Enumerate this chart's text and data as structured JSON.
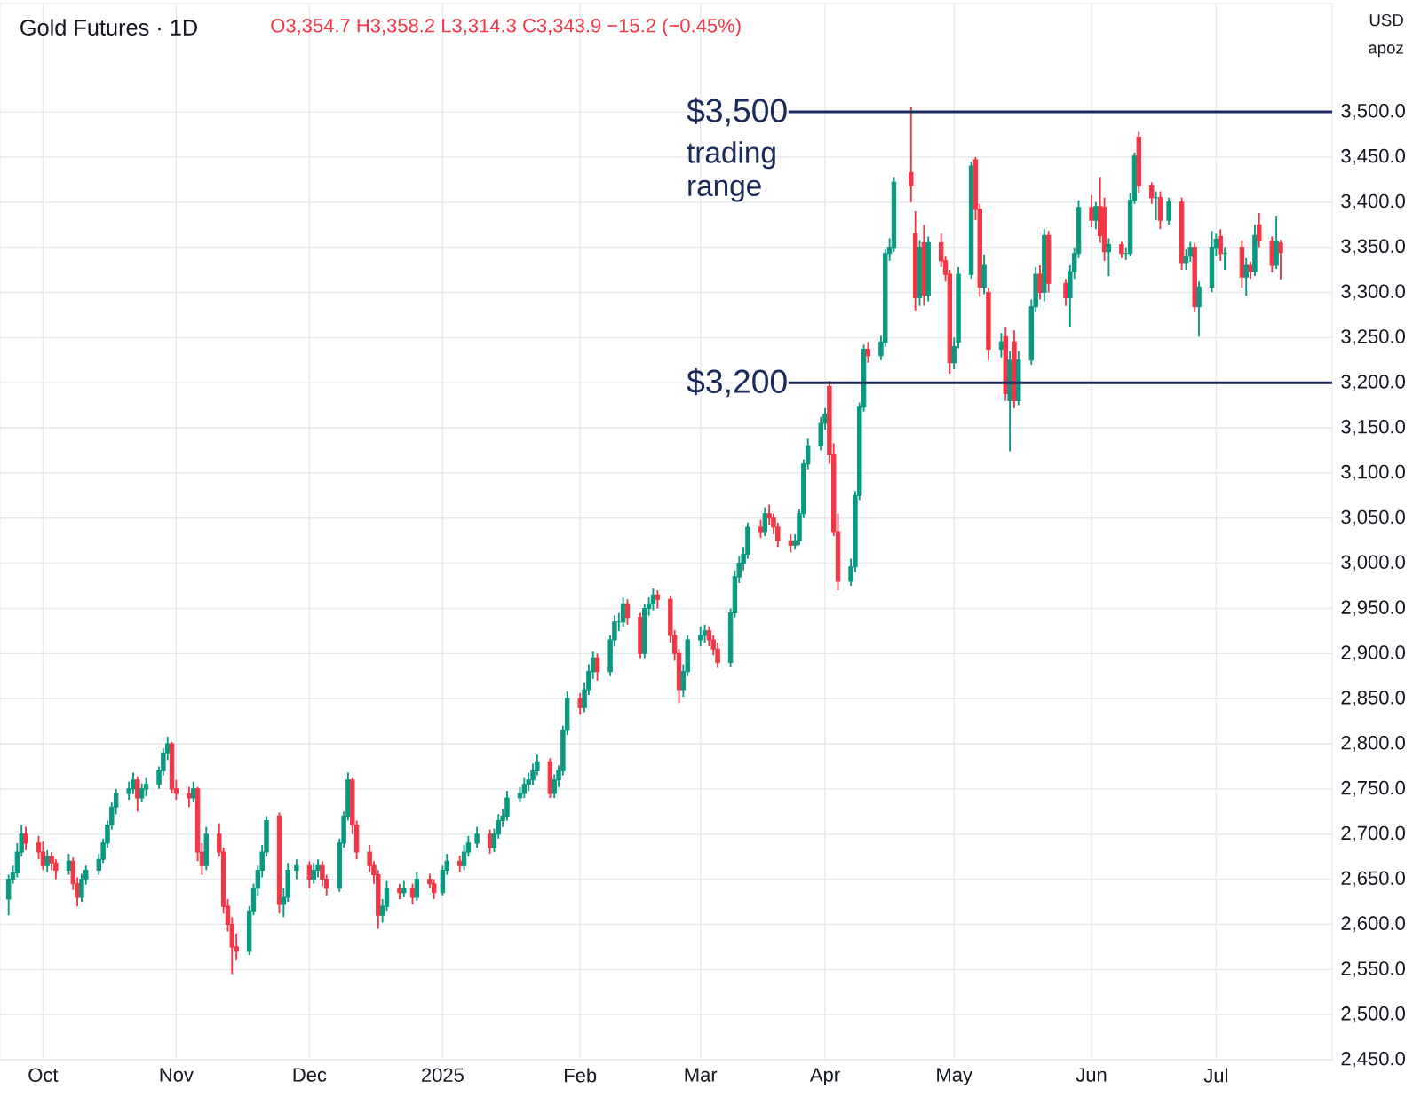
{
  "chart_data": {
    "type": "candlestick",
    "title": "Gold Futures · 1D",
    "subtitle": "O3,354.7 H3,358.2 L3,314.3 C3,343.9 −15.2 (−0.45%)",
    "annotations": [
      "trading range",
      "USD",
      "apoz"
    ],
    "colors": [
      "#089981",
      "#089981",
      "#089981",
      "#089981",
      "#f23645",
      "#f23645",
      "#f23645",
      "#089981",
      "#f23645",
      "#f23645",
      "#089981",
      "#f23645",
      "#f23645",
      "#089981",
      "#089981",
      "#089981",
      "#089981",
      "#089981",
      "#089981",
      "#089981",
      "#089981",
      "#089981",
      "#f23645",
      "#089981",
      "#089981",
      "#089981",
      "#089981",
      "#089981",
      "#f23645",
      "#f23645",
      "#f23645",
      "#089981",
      "#f23645",
      "#f23645",
      "#089981",
      "#f23645",
      "#f23645",
      "#f23645",
      "#f23645",
      "#f23645",
      "#089981",
      "#089981",
      "#089981",
      "#089981",
      "#089981",
      "#f23645",
      "#089981",
      "#089981",
      "#089981",
      "#f23645",
      "#089981",
      "#089981",
      "#f23645",
      "#f23645",
      "#089981",
      "#089981",
      "#089981",
      "#f23645",
      "#f23645",
      "#f23645",
      "#f23645",
      "#f23645",
      "#089981",
      "#089981",
      "#f23645",
      "#089981",
      "#f23645",
      "#089981",
      "#f23645",
      "#f23645",
      "#089981",
      "#089981",
      "#f23645",
      "#089981",
      "#089981",
      "#089981",
      "#f23645",
      "#089981",
      "#089981",
      "#089981",
      "#089981",
      "#089981",
      "#089981",
      "#089981",
      "#089981",
      "#089981",
      "#f23645",
      "#089981",
      "#089981",
      "#089981",
      "#089981",
      "#f23645",
      "#089981",
      "#089981",
      "#089981",
      "#f23645",
      "#089981",
      "#089981",
      "#089981",
      "#089981",
      "#f23645",
      "#f23645",
      "#089981",
      "#089981",
      "#089981",
      "#f23645",
      "#f23645",
      "#f23645",
      "#f23645",
      "#089981",
      "#089981",
      "#089981",
      "#089981",
      "#f23645",
      "#f23645",
      "#f23645",
      "#089981",
      "#089981",
      "#089981",
      "#089981",
      "#089981",
      "#f23645",
      "#089981",
      "#f23645",
      "#f23645",
      "#f23645",
      "#f23645",
      "#089981",
      "#089981",
      "#089981",
      "#089981",
      "#089981",
      "#089981",
      "#f23645",
      "#f23645",
      "#f23645",
      "#089981",
      "#089981",
      "#089981",
      "#089981",
      "#f23645",
      "#089981",
      "#089981",
      "#089981",
      "#089981",
      "#f23645",
      "#f23645",
      "#089981",
      "#f23645",
      "#089981",
      "#f23645",
      "#f23645",
      "#f23645",
      "#089981",
      "#089981",
      "#089981",
      "#f23645",
      "#f23645",
      "#089981",
      "#f23645",
      "#089981",
      "#f23645",
      "#089981",
      "#f23645",
      "#089981",
      "#089981",
      "#089981",
      "#f23645",
      "#089981",
      "#f23645",
      "#f23645",
      "#089981",
      "#089981",
      "#089981",
      "#f23645",
      "#089981",
      "#f23645",
      "#f23645",
      "#089981",
      "#f23645",
      "#089981",
      "#089981",
      "#089981",
      "#f23645",
      "#f23645",
      "#089981",
      "#f23645",
      "#089981",
      "#f23645",
      "#089981",
      "#089981",
      "#f23645",
      "#089981",
      "#089981",
      "#089981",
      "#f23645",
      "#089981",
      "#f23645",
      "#089981",
      "#f23645",
      "#089981",
      "#f23645",
      "#f23645",
      "#089981",
      "#f23645"
    ],
    "grid": true,
    "x": [
      "2024-09-23",
      "2024-09-24",
      "2024-09-25",
      "2024-09-26",
      "2024-09-27",
      "2024-09-30",
      "2024-10-01",
      "2024-10-02",
      "2024-10-03",
      "2024-10-04",
      "2024-10-07",
      "2024-10-08",
      "2024-10-09",
      "2024-10-10",
      "2024-10-11",
      "2024-10-14",
      "2024-10-15",
      "2024-10-16",
      "2024-10-17",
      "2024-10-18",
      "2024-10-21",
      "2024-10-22",
      "2024-10-23",
      "2024-10-24",
      "2024-10-25",
      "2024-10-28",
      "2024-10-29",
      "2024-10-30",
      "2024-10-31",
      "2024-11-01",
      "2024-11-04",
      "2024-11-05",
      "2024-11-06",
      "2024-11-07",
      "2024-11-08",
      "2024-11-11",
      "2024-11-12",
      "2024-11-13",
      "2024-11-14",
      "2024-11-15",
      "2024-11-18",
      "2024-11-19",
      "2024-11-20",
      "2024-11-21",
      "2024-11-22",
      "2024-11-25",
      "2024-11-26",
      "2024-11-27",
      "2024-11-29",
      "2024-12-02",
      "2024-12-03",
      "2024-12-04",
      "2024-12-05",
      "2024-12-06",
      "2024-12-09",
      "2024-12-10",
      "2024-12-11",
      "2024-12-12",
      "2024-12-13",
      "2024-12-16",
      "2024-12-17",
      "2024-12-18",
      "2024-12-19",
      "2024-12-20",
      "2024-12-23",
      "2024-12-24",
      "2024-12-26",
      "2024-12-27",
      "2024-12-30",
      "2024-12-31",
      "2025-01-02",
      "2025-01-03",
      "2025-01-06",
      "2025-01-07",
      "2025-01-08",
      "2025-01-10",
      "2025-01-13",
      "2025-01-14",
      "2025-01-15",
      "2025-01-16",
      "2025-01-17",
      "2025-01-20",
      "2025-01-21",
      "2025-01-22",
      "2025-01-23",
      "2025-01-24",
      "2025-01-27",
      "2025-01-28",
      "2025-01-29",
      "2025-01-30",
      "2025-01-31",
      "2025-02-03",
      "2025-02-04",
      "2025-02-05",
      "2025-02-06",
      "2025-02-07",
      "2025-02-10",
      "2025-02-11",
      "2025-02-12",
      "2025-02-13",
      "2025-02-14",
      "2025-02-17",
      "2025-02-18",
      "2025-02-19",
      "2025-02-20",
      "2025-02-21",
      "2025-02-24",
      "2025-02-25",
      "2025-02-26",
      "2025-02-27",
      "2025-02-28",
      "2025-03-03",
      "2025-03-04",
      "2025-03-05",
      "2025-03-06",
      "2025-03-07",
      "2025-03-10",
      "2025-03-11",
      "2025-03-12",
      "2025-03-13",
      "2025-03-14",
      "2025-03-17",
      "2025-03-18",
      "2025-03-19",
      "2025-03-20",
      "2025-03-21",
      "2025-03-24",
      "2025-03-25",
      "2025-03-26",
      "2025-03-27",
      "2025-03-28",
      "2025-03-31",
      "2025-04-01",
      "2025-04-02",
      "2025-04-03",
      "2025-04-04",
      "2025-04-07",
      "2025-04-08",
      "2025-04-09",
      "2025-04-10",
      "2025-04-11",
      "2025-04-14",
      "2025-04-15",
      "2025-04-16",
      "2025-04-17",
      "2025-04-21",
      "2025-04-22",
      "2025-04-23",
      "2025-04-24",
      "2025-04-25",
      "2025-04-28",
      "2025-04-29",
      "2025-04-30",
      "2025-05-01",
      "2025-05-02",
      "2025-05-05",
      "2025-05-06",
      "2025-05-07",
      "2025-05-08",
      "2025-05-09",
      "2025-05-12",
      "2025-05-13",
      "2025-05-14",
      "2025-05-15",
      "2025-05-16",
      "2025-05-19",
      "2025-05-20",
      "2025-05-21",
      "2025-05-22",
      "2025-05-23",
      "2025-05-27",
      "2025-05-28",
      "2025-05-29",
      "2025-05-30",
      "2025-06-02",
      "2025-06-03",
      "2025-06-04",
      "2025-06-05",
      "2025-06-06",
      "2025-06-09",
      "2025-06-10",
      "2025-06-11",
      "2025-06-12",
      "2025-06-13",
      "2025-06-16",
      "2025-06-17",
      "2025-06-18",
      "2025-06-20",
      "2025-06-23",
      "2025-06-24",
      "2025-06-25",
      "2025-06-26",
      "2025-06-27",
      "2025-06-30",
      "2025-07-01",
      "2025-07-02",
      "2025-07-03",
      "2025-07-07",
      "2025-07-08",
      "2025-07-09",
      "2025-07-10",
      "2025-07-11",
      "2025-07-14",
      "2025-07-15",
      "2025-07-16"
    ],
    "ohlc": [
      [
        2628,
        2655,
        2610,
        2650
      ],
      [
        2650,
        2665,
        2645,
        2657
      ],
      [
        2657,
        2690,
        2652,
        2680
      ],
      [
        2680,
        2710,
        2675,
        2700
      ],
      [
        2700,
        2708,
        2682,
        2690
      ],
      [
        2690,
        2698,
        2672,
        2680
      ],
      [
        2680,
        2692,
        2660,
        2665
      ],
      [
        2665,
        2682,
        2658,
        2675
      ],
      [
        2675,
        2680,
        2660,
        2668
      ],
      [
        2668,
        2672,
        2650,
        2660
      ],
      [
        2660,
        2678,
        2655,
        2670
      ],
      [
        2670,
        2674,
        2638,
        2645
      ],
      [
        2645,
        2652,
        2620,
        2630
      ],
      [
        2630,
        2656,
        2625,
        2650
      ],
      [
        2650,
        2665,
        2644,
        2660
      ],
      [
        2660,
        2678,
        2655,
        2672
      ],
      [
        2672,
        2695,
        2668,
        2690
      ],
      [
        2690,
        2715,
        2685,
        2710
      ],
      [
        2710,
        2735,
        2705,
        2730
      ],
      [
        2730,
        2750,
        2722,
        2745
      ],
      [
        2745,
        2758,
        2738,
        2750
      ],
      [
        2750,
        2768,
        2744,
        2760
      ],
      [
        2760,
        2764,
        2725,
        2740
      ],
      [
        2740,
        2756,
        2735,
        2750
      ],
      [
        2750,
        2762,
        2742,
        2755
      ],
      [
        2755,
        2775,
        2750,
        2770
      ],
      [
        2770,
        2795,
        2765,
        2790
      ],
      [
        2790,
        2808,
        2782,
        2800
      ],
      [
        2800,
        2802,
        2745,
        2750
      ],
      [
        2750,
        2760,
        2738,
        2745
      ],
      [
        2745,
        2752,
        2730,
        2740
      ],
      [
        2740,
        2758,
        2735,
        2750
      ],
      [
        2750,
        2752,
        2670,
        2680
      ],
      [
        2680,
        2690,
        2655,
        2665
      ],
      [
        2665,
        2708,
        2660,
        2700
      ],
      [
        2700,
        2712,
        2675,
        2680
      ],
      [
        2680,
        2685,
        2612,
        2620
      ],
      [
        2620,
        2628,
        2592,
        2600
      ],
      [
        2600,
        2608,
        2545,
        2575
      ],
      [
        2575,
        2590,
        2560,
        2570
      ],
      [
        2570,
        2620,
        2566,
        2615
      ],
      [
        2615,
        2645,
        2610,
        2640
      ],
      [
        2640,
        2665,
        2632,
        2660
      ],
      [
        2660,
        2688,
        2652,
        2680
      ],
      [
        2680,
        2720,
        2675,
        2715
      ],
      [
        2720,
        2724,
        2612,
        2622
      ],
      [
        2622,
        2640,
        2608,
        2630
      ],
      [
        2630,
        2668,
        2625,
        2660
      ],
      [
        2660,
        2672,
        2650,
        2665
      ],
      [
        2665,
        2670,
        2640,
        2650
      ],
      [
        2650,
        2668,
        2645,
        2660
      ],
      [
        2660,
        2672,
        2652,
        2665
      ],
      [
        2665,
        2670,
        2642,
        2650
      ],
      [
        2650,
        2655,
        2632,
        2640
      ],
      [
        2640,
        2695,
        2636,
        2690
      ],
      [
        2690,
        2725,
        2685,
        2720
      ],
      [
        2720,
        2768,
        2715,
        2760
      ],
      [
        2760,
        2762,
        2700,
        2710
      ],
      [
        2710,
        2715,
        2672,
        2680
      ],
      [
        2680,
        2688,
        2658,
        2665
      ],
      [
        2665,
        2670,
        2645,
        2655
      ],
      [
        2655,
        2660,
        2595,
        2610
      ],
      [
        2610,
        2628,
        2602,
        2620
      ],
      [
        2620,
        2648,
        2615,
        2640
      ],
      [
        2640,
        2645,
        2628,
        2635
      ],
      [
        2635,
        2648,
        2630,
        2640
      ],
      [
        2640,
        2645,
        2622,
        2630
      ],
      [
        2630,
        2658,
        2626,
        2650
      ],
      [
        2650,
        2656,
        2640,
        2645
      ],
      [
        2645,
        2650,
        2628,
        2635
      ],
      [
        2635,
        2665,
        2632,
        2660
      ],
      [
        2660,
        2678,
        2655,
        2670
      ],
      [
        2670,
        2676,
        2658,
        2665
      ],
      [
        2665,
        2688,
        2660,
        2680
      ],
      [
        2680,
        2698,
        2675,
        2690
      ],
      [
        2690,
        2708,
        2685,
        2700
      ],
      [
        2700,
        2705,
        2678,
        2685
      ],
      [
        2685,
        2706,
        2680,
        2700
      ],
      [
        2700,
        2722,
        2695,
        2715
      ],
      [
        2715,
        2728,
        2708,
        2720
      ],
      [
        2720,
        2748,
        2715,
        2740
      ],
      [
        2740,
        2752,
        2735,
        2745
      ],
      [
        2745,
        2762,
        2740,
        2755
      ],
      [
        2755,
        2768,
        2748,
        2760
      ],
      [
        2760,
        2778,
        2754,
        2770
      ],
      [
        2770,
        2788,
        2765,
        2780
      ],
      [
        2780,
        2784,
        2740,
        2745
      ],
      [
        2745,
        2766,
        2740,
        2760
      ],
      [
        2760,
        2776,
        2752,
        2770
      ],
      [
        2770,
        2820,
        2765,
        2815
      ],
      [
        2815,
        2858,
        2810,
        2850
      ],
      [
        2850,
        2856,
        2832,
        2840
      ],
      [
        2840,
        2868,
        2835,
        2860
      ],
      [
        2860,
        2888,
        2854,
        2880
      ],
      [
        2880,
        2902,
        2872,
        2895
      ],
      [
        2895,
        2900,
        2870,
        2880
      ],
      [
        2880,
        2920,
        2875,
        2915
      ],
      [
        2915,
        2942,
        2908,
        2935
      ],
      [
        2935,
        2945,
        2925,
        2935
      ],
      [
        2935,
        2962,
        2930,
        2955
      ],
      [
        2955,
        2960,
        2932,
        2940
      ],
      [
        2940,
        2945,
        2895,
        2900
      ],
      [
        2900,
        2955,
        2895,
        2950
      ],
      [
        2950,
        2962,
        2942,
        2955
      ],
      [
        2955,
        2972,
        2948,
        2965
      ],
      [
        2965,
        2970,
        2950,
        2960
      ],
      [
        2960,
        2964,
        2912,
        2920
      ],
      [
        2920,
        2926,
        2892,
        2900
      ],
      [
        2900,
        2905,
        2845,
        2860
      ],
      [
        2860,
        2888,
        2852,
        2880
      ],
      [
        2880,
        2920,
        2875,
        2915
      ],
      [
        2915,
        2930,
        2908,
        2920
      ],
      [
        2920,
        2932,
        2912,
        2925
      ],
      [
        2925,
        2930,
        2908,
        2915
      ],
      [
        2915,
        2920,
        2898,
        2905
      ],
      [
        2905,
        2912,
        2884,
        2890
      ],
      [
        2890,
        2950,
        2885,
        2945
      ],
      [
        2945,
        2992,
        2940,
        2985
      ],
      [
        2985,
        3008,
        2978,
        3000
      ],
      [
        3000,
        3018,
        2992,
        3010
      ],
      [
        3010,
        3045,
        3005,
        3040
      ],
      [
        3040,
        3048,
        3028,
        3035
      ],
      [
        3035,
        3062,
        3030,
        3055
      ],
      [
        3055,
        3065,
        3042,
        3050
      ],
      [
        3050,
        3055,
        3032,
        3040
      ],
      [
        3040,
        3045,
        3018,
        3025
      ],
      [
        3025,
        3032,
        3012,
        3020
      ],
      [
        3020,
        3032,
        3015,
        3025
      ],
      [
        3025,
        3060,
        3020,
        3055
      ],
      [
        3055,
        3115,
        3050,
        3110
      ],
      [
        3110,
        3138,
        3104,
        3130
      ],
      [
        3130,
        3162,
        3125,
        3155
      ],
      [
        3155,
        3172,
        3148,
        3165
      ],
      [
        3196,
        3202,
        3110,
        3120
      ],
      [
        3120,
        3133,
        3030,
        3035
      ],
      [
        3035,
        3055,
        2970,
        2980
      ],
      [
        2980,
        3005,
        2975,
        2996
      ],
      [
        2996,
        3080,
        2990,
        3075
      ],
      [
        3075,
        3178,
        3070,
        3173
      ],
      [
        3173,
        3242,
        3168,
        3237
      ],
      [
        3237,
        3245,
        3222,
        3230
      ],
      [
        3230,
        3252,
        3225,
        3245
      ],
      [
        3245,
        3348,
        3240,
        3343
      ],
      [
        3343,
        3360,
        3335,
        3350
      ],
      [
        3350,
        3428,
        3345,
        3422
      ],
      [
        3433,
        3506,
        3400,
        3418
      ],
      [
        3365,
        3390,
        3280,
        3294
      ],
      [
        3294,
        3358,
        3285,
        3350
      ],
      [
        3355,
        3375,
        3285,
        3297
      ],
      [
        3297,
        3362,
        3290,
        3355
      ],
      [
        3355,
        3365,
        3328,
        3335
      ],
      [
        3335,
        3340,
        3312,
        3320
      ],
      [
        3320,
        3325,
        3210,
        3222
      ],
      [
        3222,
        3250,
        3215,
        3240
      ],
      [
        3245,
        3328,
        3238,
        3320
      ],
      [
        3320,
        3445,
        3315,
        3440
      ],
      [
        3447,
        3450,
        3380,
        3392
      ],
      [
        3392,
        3398,
        3295,
        3306
      ],
      [
        3306,
        3342,
        3298,
        3330
      ],
      [
        3300,
        3305,
        3225,
        3237
      ],
      [
        3237,
        3255,
        3228,
        3245
      ],
      [
        3251,
        3262,
        3180,
        3188
      ],
      [
        3180,
        3235,
        3124,
        3225
      ],
      [
        3245,
        3258,
        3172,
        3180
      ],
      [
        3180,
        3235,
        3175,
        3225
      ],
      [
        3225,
        3292,
        3220,
        3284
      ],
      [
        3284,
        3328,
        3278,
        3320
      ],
      [
        3320,
        3330,
        3292,
        3300
      ],
      [
        3300,
        3370,
        3290,
        3363
      ],
      [
        3363,
        3368,
        3300,
        3310
      ],
      [
        3310,
        3315,
        3285,
        3294
      ],
      [
        3294,
        3330,
        3262,
        3323
      ],
      [
        3323,
        3350,
        3315,
        3343
      ],
      [
        3343,
        3402,
        3338,
        3394
      ],
      [
        3394,
        3408,
        3372,
        3380
      ],
      [
        3380,
        3400,
        3370,
        3395
      ],
      [
        3395,
        3428,
        3355,
        3363
      ],
      [
        3394,
        3405,
        3335,
        3345
      ],
      [
        3345,
        3360,
        3318,
        3353
      ],
      [
        3353,
        3356,
        3338,
        3343
      ],
      [
        3343,
        3350,
        3336,
        3343
      ],
      [
        3343,
        3410,
        3340,
        3402
      ],
      [
        3402,
        3455,
        3398,
        3451
      ],
      [
        3472,
        3478,
        3410,
        3418
      ],
      [
        3418,
        3422,
        3398,
        3405
      ],
      [
        3405,
        3412,
        3380,
        3405
      ],
      [
        3405,
        3412,
        3370,
        3380
      ],
      [
        3380,
        3405,
        3375,
        3400
      ],
      [
        3400,
        3405,
        3325,
        3333
      ],
      [
        3333,
        3348,
        3325,
        3340
      ],
      [
        3340,
        3356,
        3334,
        3350
      ],
      [
        3350,
        3355,
        3278,
        3284
      ],
      [
        3284,
        3312,
        3251,
        3306
      ],
      [
        3306,
        3368,
        3300,
        3350
      ],
      [
        3350,
        3365,
        3340,
        3359
      ],
      [
        3362,
        3370,
        3335,
        3343
      ],
      [
        3343,
        3350,
        3325,
        3343
      ],
      [
        3350,
        3358,
        3305,
        3317
      ],
      [
        3317,
        3338,
        3296,
        3330
      ],
      [
        3330,
        3334,
        3315,
        3323
      ],
      [
        3323,
        3375,
        3318,
        3363
      ],
      [
        3375,
        3388,
        3350,
        3357
      ],
      [
        3357,
        3362,
        3322,
        3330
      ],
      [
        3330,
        3385,
        3326,
        3357
      ],
      [
        3354.7,
        3358.2,
        3314.3,
        3343.9
      ]
    ],
    "xlim": [
      "2024-09-21",
      "2025-07-28"
    ],
    "xticks": [
      {
        "value": "2024-10-01",
        "label": "Oct"
      },
      {
        "value": "2024-11-01",
        "label": "Nov"
      },
      {
        "value": "2024-12-02",
        "label": "Dec"
      },
      {
        "value": "2025-01-02",
        "label": "2025"
      },
      {
        "value": "2025-02-03",
        "label": "Feb"
      },
      {
        "value": "2025-03-03",
        "label": "Mar"
      },
      {
        "value": "2025-04-01",
        "label": "Apr"
      },
      {
        "value": "2025-05-01",
        "label": "May"
      },
      {
        "value": "2025-06-02",
        "label": "Jun"
      },
      {
        "value": "2025-07-01",
        "label": "Jul"
      }
    ],
    "ylim": [
      2450,
      3620
    ],
    "yticks": [
      {
        "value": 2450,
        "label": "2,450.0"
      },
      {
        "value": 2500,
        "label": "2,500.0"
      },
      {
        "value": 2550,
        "label": "2,550.0"
      },
      {
        "value": 2600,
        "label": "2,600.0"
      },
      {
        "value": 2650,
        "label": "2,650.0"
      },
      {
        "value": 2700,
        "label": "2,700.0"
      },
      {
        "value": 2750,
        "label": "2,750.0"
      },
      {
        "value": 2800,
        "label": "2,800.0"
      },
      {
        "value": 2850,
        "label": "2,850.0"
      },
      {
        "value": 2900,
        "label": "2,900.0"
      },
      {
        "value": 2950,
        "label": "2,950.0"
      },
      {
        "value": 3000,
        "label": "3,000.0"
      },
      {
        "value": 3050,
        "label": "3,050.0"
      },
      {
        "value": 3100,
        "label": "3,100.0"
      },
      {
        "value": 3150,
        "label": "3,150.0"
      },
      {
        "value": 3200,
        "label": "3,200.0"
      },
      {
        "value": 3250,
        "label": "3,250.0"
      },
      {
        "value": 3300,
        "label": "3,300.0"
      },
      {
        "value": 3350,
        "label": "3,350.0"
      },
      {
        "value": 3400,
        "label": "3,400.0"
      },
      {
        "value": 3450,
        "label": "3,450.0"
      },
      {
        "value": 3500,
        "label": "3,500.0"
      }
    ],
    "ref_lines": [
      {
        "axis": "y",
        "value": 3500,
        "label": "$3,500",
        "color": "#1b2a5c"
      },
      {
        "axis": "y",
        "value": 3200,
        "label": "$3,200",
        "color": "#1b2a5c"
      }
    ]
  }
}
